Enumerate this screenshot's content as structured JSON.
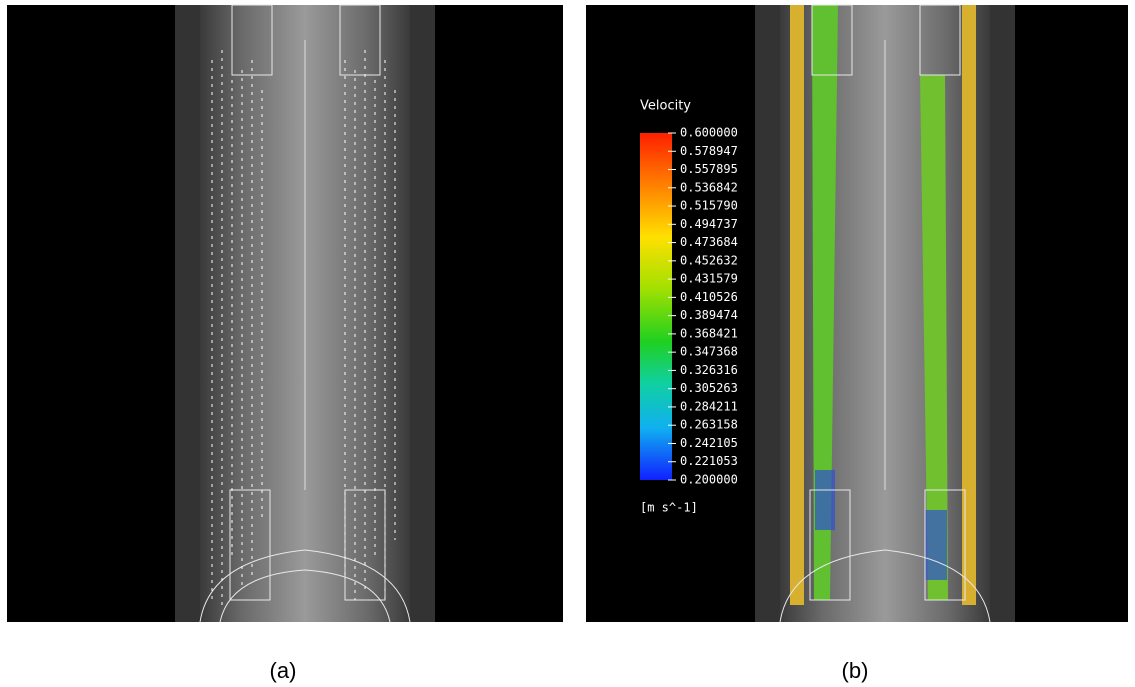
{
  "panels": {
    "a": {
      "caption": "(a)"
    },
    "b": {
      "caption": "(b)",
      "legend": {
        "title": "Velocity",
        "labels": [
          "0.600000",
          "0.578947",
          "0.557895",
          "0.536842",
          "0.515790",
          "0.494737",
          "0.473684",
          "0.452632",
          "0.431579",
          "0.410526",
          "0.389474",
          "0.368421",
          "0.347368",
          "0.326316",
          "0.305263",
          "0.284211",
          "0.263158",
          "0.242105",
          "0.221053",
          "0.200000"
        ],
        "unit": "[m s^-1]"
      }
    }
  }
}
